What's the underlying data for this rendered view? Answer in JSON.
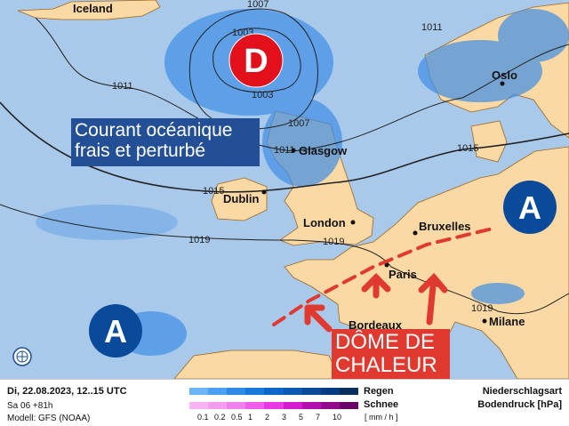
{
  "map": {
    "pressure_systems": [
      {
        "letter": "D",
        "type": "low",
        "color": "#e2101a"
      },
      {
        "letter": "A",
        "type": "high",
        "color": "#0a4a9a"
      },
      {
        "letter": "A",
        "type": "high",
        "color": "#0a4a9a"
      }
    ],
    "cities": [
      "Iceland",
      "Oslo",
      "Glasgow",
      "Dublin",
      "London",
      "Bruxelles",
      "Paris",
      "Bordeaux",
      "Milane"
    ],
    "isobars": [
      "1007",
      "1003",
      "1003",
      "1011",
      "1011",
      "1007",
      "1011",
      "1015",
      "1015",
      "1019",
      "1019",
      "1019",
      "1015"
    ],
    "annotations": {
      "courant_line1": "Courant océanique",
      "courant_line2": "frais et perturbé",
      "dome_line1": "DÔME DE",
      "dome_line2": "CHALEUR"
    },
    "colors": {
      "sea": "#a9c9ea",
      "land": "#fbd9a5",
      "rain": "#3f8ee6",
      "annotation_blue": "#234f97",
      "annotation_red": "#e03a30"
    }
  },
  "legend": {
    "datetime": "Di, 22.08.2023, 12..15 UTC",
    "run": "Sa 06 +81h",
    "model": "Modell: GFS (NOAA)",
    "rain_label": "Regen",
    "snow_label": "Schnee",
    "unit": "[ mm / h ]",
    "scale": [
      "0.1",
      "0.2",
      "0.5",
      "1",
      "2",
      "3",
      "5",
      "7",
      "10"
    ],
    "rain_colors": [
      "#6cb4f5",
      "#4ba0ef",
      "#2f8ae6",
      "#1a78da",
      "#0c67c8",
      "#0b58b0",
      "#0a4a98",
      "#083c80",
      "#082e5e"
    ],
    "snow_colors": [
      "#f7b3f3",
      "#f39cf0",
      "#f080ec",
      "#ee5fe9",
      "#e83ae2",
      "#d41ccc",
      "#b40fae",
      "#900a8b",
      "#6a0568"
    ],
    "title1": "Niederschlagsart",
    "title2": "Bodendruck [hPa]"
  }
}
